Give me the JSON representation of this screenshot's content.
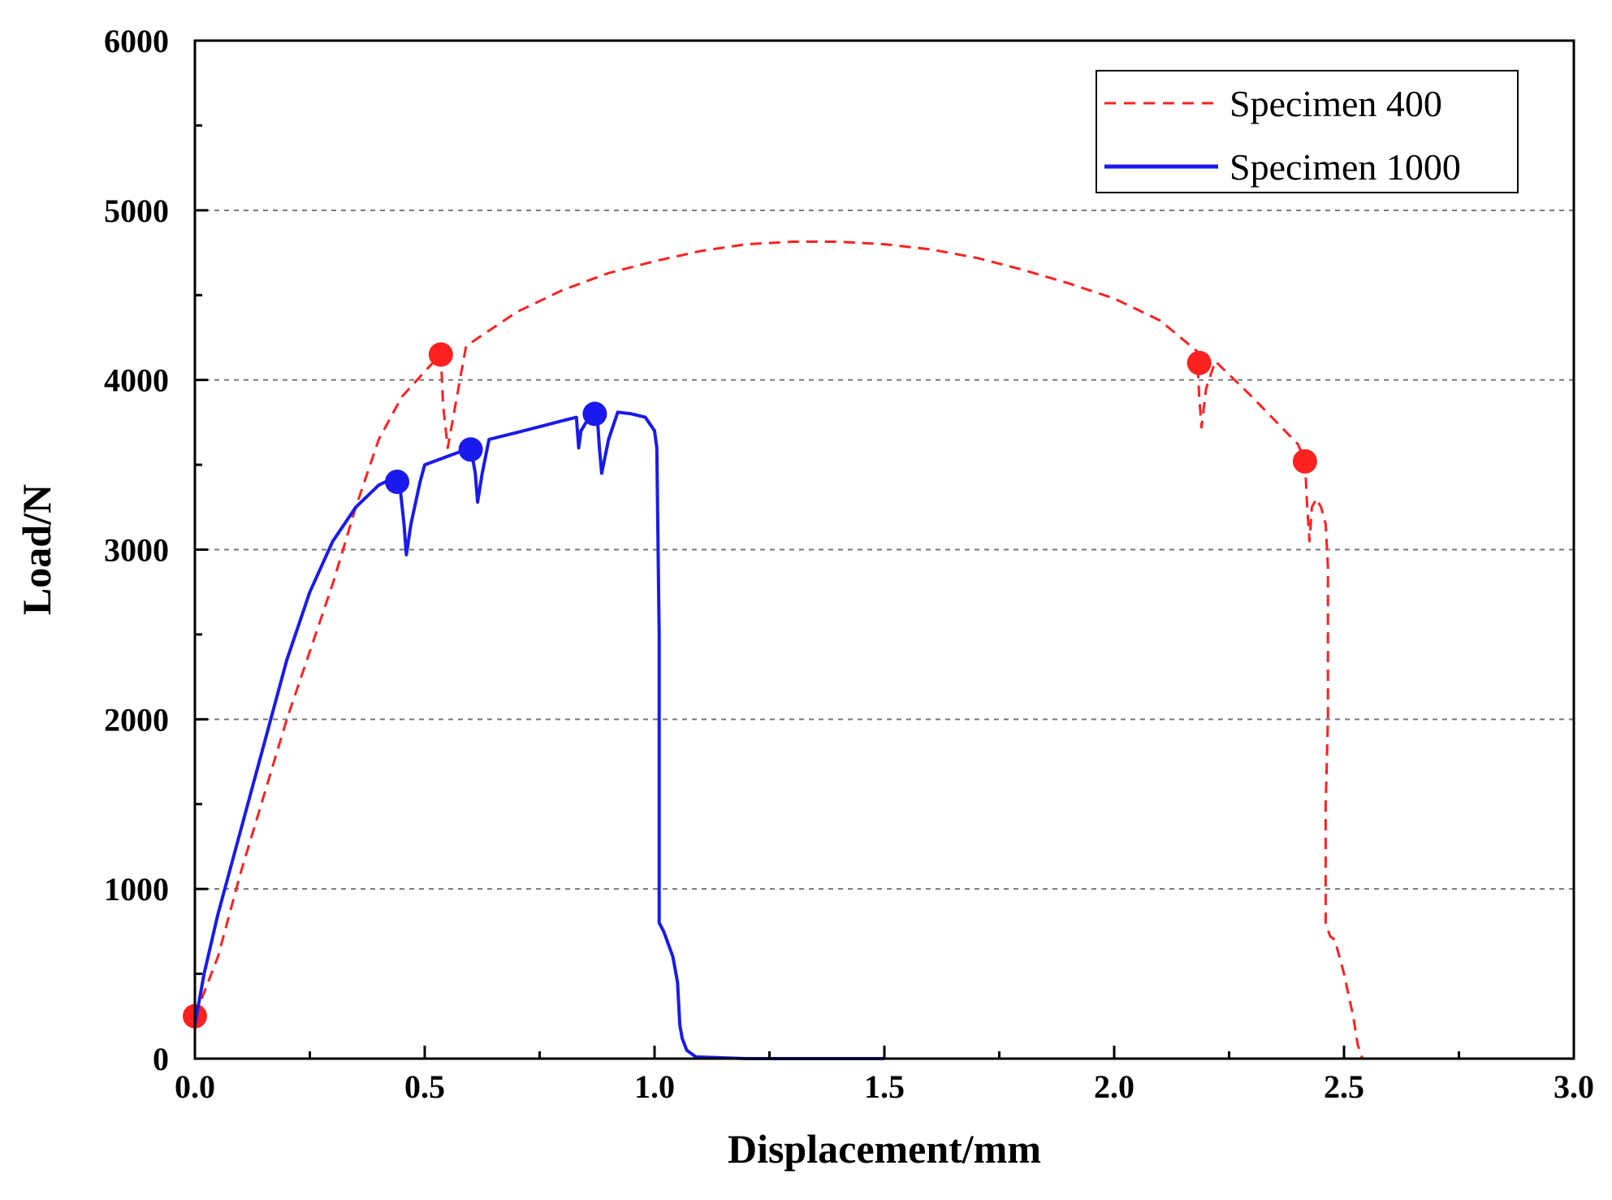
{
  "chart_data": {
    "type": "line",
    "title": "",
    "xlabel": "Displacement/mm",
    "ylabel": "Load/N",
    "xlim": [
      0,
      3.0
    ],
    "ylim": [
      0,
      6000
    ],
    "x_ticks": [
      0.0,
      0.5,
      1.0,
      1.5,
      2.0,
      2.5,
      3.0
    ],
    "x_tick_labels": [
      "0.0",
      "0.5",
      "1.0",
      "1.5",
      "2.0",
      "2.5",
      "3.0"
    ],
    "y_ticks": [
      0,
      1000,
      2000,
      3000,
      4000,
      5000,
      6000
    ],
    "y_tick_labels": [
      "0",
      "1000",
      "2000",
      "3000",
      "4000",
      "5000",
      "6000"
    ],
    "grid": "horizontal dashed at 1000, 2000, 3000, 4000, 5000",
    "legend_position": "top-right",
    "series": [
      {
        "name": "Specimen 400",
        "color": "#ff2020",
        "style": "dashed",
        "points": [
          [
            0.0,
            250
          ],
          [
            0.05,
            600
          ],
          [
            0.1,
            1100
          ],
          [
            0.15,
            1550
          ],
          [
            0.2,
            2000
          ],
          [
            0.25,
            2400
          ],
          [
            0.3,
            2800
          ],
          [
            0.35,
            3250
          ],
          [
            0.4,
            3650
          ],
          [
            0.45,
            3900
          ],
          [
            0.5,
            4050
          ],
          [
            0.535,
            4150
          ],
          [
            0.54,
            3850
          ],
          [
            0.55,
            3600
          ],
          [
            0.57,
            3900
          ],
          [
            0.59,
            4200
          ],
          [
            0.7,
            4400
          ],
          [
            0.8,
            4530
          ],
          [
            0.9,
            4630
          ],
          [
            1.0,
            4700
          ],
          [
            1.1,
            4760
          ],
          [
            1.2,
            4800
          ],
          [
            1.3,
            4815
          ],
          [
            1.4,
            4815
          ],
          [
            1.5,
            4800
          ],
          [
            1.6,
            4770
          ],
          [
            1.7,
            4720
          ],
          [
            1.8,
            4650
          ],
          [
            1.9,
            4570
          ],
          [
            2.0,
            4480
          ],
          [
            2.1,
            4350
          ],
          [
            2.18,
            4170
          ],
          [
            2.185,
            3900
          ],
          [
            2.19,
            3720
          ],
          [
            2.2,
            3950
          ],
          [
            2.22,
            4110
          ],
          [
            2.3,
            3900
          ],
          [
            2.4,
            3620
          ],
          [
            2.415,
            3520
          ],
          [
            2.42,
            3250
          ],
          [
            2.425,
            3050
          ],
          [
            2.43,
            3250
          ],
          [
            2.44,
            3300
          ],
          [
            2.45,
            3250
          ],
          [
            2.46,
            3150
          ],
          [
            2.465,
            2900
          ],
          [
            2.465,
            2000
          ],
          [
            2.46,
            1500
          ],
          [
            2.46,
            1000
          ],
          [
            2.46,
            800
          ],
          [
            2.47,
            720
          ],
          [
            2.48,
            700
          ],
          [
            2.5,
            500
          ],
          [
            2.52,
            250
          ],
          [
            2.53,
            80
          ],
          [
            2.54,
            0
          ],
          [
            2.58,
            0
          ]
        ],
        "markers": [
          [
            0.0,
            250
          ],
          [
            0.535,
            4150
          ],
          [
            2.185,
            4100
          ],
          [
            2.415,
            3520
          ]
        ]
      },
      {
        "name": "Specimen 1000",
        "color": "#1a1aee",
        "style": "solid",
        "points": [
          [
            0.0,
            200
          ],
          [
            0.02,
            500
          ],
          [
            0.05,
            850
          ],
          [
            0.1,
            1350
          ],
          [
            0.15,
            1850
          ],
          [
            0.2,
            2350
          ],
          [
            0.25,
            2750
          ],
          [
            0.3,
            3050
          ],
          [
            0.35,
            3250
          ],
          [
            0.4,
            3380
          ],
          [
            0.43,
            3420
          ],
          [
            0.445,
            3400
          ],
          [
            0.455,
            3150
          ],
          [
            0.46,
            2970
          ],
          [
            0.47,
            3150
          ],
          [
            0.49,
            3400
          ],
          [
            0.5,
            3500
          ],
          [
            0.55,
            3550
          ],
          [
            0.6,
            3600
          ],
          [
            0.61,
            3450
          ],
          [
            0.615,
            3280
          ],
          [
            0.625,
            3450
          ],
          [
            0.64,
            3650
          ],
          [
            0.7,
            3690
          ],
          [
            0.8,
            3760
          ],
          [
            0.83,
            3780
          ],
          [
            0.835,
            3600
          ],
          [
            0.84,
            3700
          ],
          [
            0.86,
            3790
          ],
          [
            0.875,
            3800
          ],
          [
            0.88,
            3600
          ],
          [
            0.885,
            3450
          ],
          [
            0.9,
            3650
          ],
          [
            0.92,
            3810
          ],
          [
            0.95,
            3800
          ],
          [
            0.98,
            3780
          ],
          [
            1.0,
            3700
          ],
          [
            1.005,
            3600
          ],
          [
            1.01,
            2500
          ],
          [
            1.01,
            1500
          ],
          [
            1.01,
            800
          ],
          [
            1.02,
            750
          ],
          [
            1.04,
            600
          ],
          [
            1.05,
            450
          ],
          [
            1.055,
            200
          ],
          [
            1.06,
            120
          ],
          [
            1.07,
            50
          ],
          [
            1.09,
            10
          ],
          [
            1.2,
            0
          ],
          [
            1.5,
            0
          ]
        ],
        "markers": [
          [
            0.44,
            3400
          ],
          [
            0.6,
            3590
          ],
          [
            0.87,
            3800
          ]
        ]
      }
    ]
  }
}
